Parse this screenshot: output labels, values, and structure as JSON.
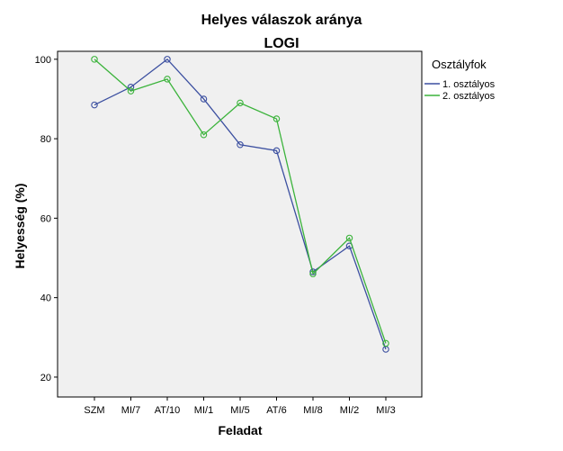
{
  "chart_data": {
    "type": "line",
    "title": "Helyes válaszok aránya",
    "subtitle": "LOGI",
    "xlabel": "Feladat",
    "ylabel": "Helyesség (%)",
    "categories": [
      "SZM",
      "MI/7",
      "AT/10",
      "MI/1",
      "MI/5",
      "AT/6",
      "MI/8",
      "MI/2",
      "MI/3"
    ],
    "ylim": [
      15,
      102
    ],
    "yticks": [
      20,
      40,
      60,
      80,
      100
    ],
    "grid": false,
    "legend": {
      "title": "Osztályfok",
      "position": "right"
    },
    "series": [
      {
        "name": "1. osztályos",
        "color": "#3b4fa0",
        "values": [
          88.5,
          93,
          100,
          90,
          78.5,
          77,
          46.5,
          53,
          27
        ]
      },
      {
        "name": "2. osztályos",
        "color": "#3bb33b",
        "values": [
          100,
          92,
          95,
          81,
          89,
          85,
          46,
          55,
          28.5
        ]
      }
    ]
  }
}
